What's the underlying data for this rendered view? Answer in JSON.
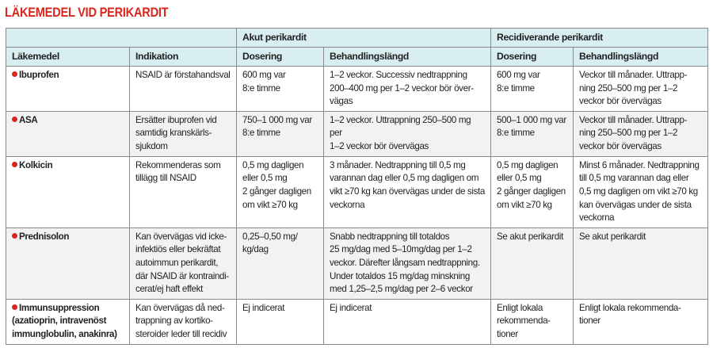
{
  "title": "LÄKEMEDEL VID PERIKARDIT",
  "colors": {
    "title": "#d8261c",
    "header_bg": "#d8eef0",
    "bullet": "#d8261c",
    "alt_row": "#f2f2f2"
  },
  "groups": {
    "acute": "Akut perikardit",
    "recurrent": "Recidiverande perikardit"
  },
  "columns": [
    "Läkemedel",
    "Indikation",
    "Dosering",
    "Behandlingslängd",
    "Dosering",
    "Behandlingslängd"
  ],
  "rows": [
    {
      "drug": "Ibuprofen",
      "indication": "NSAID är förstahandsval",
      "acute_dose": "600 mg var\n8:e timme",
      "acute_duration": "1–2 veckor. Successiv nedtrappning\n200–400 mg per 1–2 veckor bör över-\nvägas",
      "recurrent_dose": "600 mg var\n8:e timme",
      "recurrent_duration": "Veckor till månader. Uttrapp-\nning 250–500 mg per 1–2\nveckor bör övervägas"
    },
    {
      "drug": "ASA",
      "indication": "Ersätter ibuprofen vid\nsamtidig kranskärls-\nsjukdom",
      "acute_dose": "750–1 000 mg var\n8:e timme",
      "acute_duration": "1–2 veckor. Uttrappning 250–500 mg per\n1–2 veckor bör övervägas",
      "recurrent_dose": "500–1 000 mg var\n8:e timme",
      "recurrent_duration": "Veckor till månader. Uttrapp-\nning 250–500 mg per 1–2\nveckor bör övervägas"
    },
    {
      "drug": "Kolkicin",
      "indication": "Rekommenderas som\ntillägg till NSAID",
      "acute_dose": "0,5 mg dagligen\neller 0,5 mg\n2 gånger dagligen\nom vikt ≥70 kg",
      "acute_duration": "3 månader. Nedtrappning till 0,5 mg\nvarannan dag eller 0,5 mg dagligen om\nvikt ≥70 kg kan övervägas under de sista\nveckorna",
      "recurrent_dose": "0,5 mg dagligen\neller 0,5 mg\n2 gånger dagligen\nom vikt ≥70 kg",
      "recurrent_duration": "Minst 6 månader. Nedtrappning\ntill 0,5 mg varannan dag eller\n0,5 mg dagligen om vikt ≥70 kg\nkan övervägas under de sista\nveckorna"
    },
    {
      "drug": "Prednisolon",
      "indication": "Kan övervägas vid icke-\ninfektiös eller bekräftat\nautoimmun perikardit,\ndär NSAID är kontraindi-\ncerat/ej haft effekt",
      "acute_dose": "0,25–0,50 mg/\nkg/dag",
      "acute_duration": "Snabb nedtrappning till totaldos\n25 mg/dag med 5–10mg/dag per 1–2\nveckor. Därefter långsam nedtrappning.\nUnder totaldos 15 mg/dag minskning\nmed 1,25–2,5 mg/dag per 2–6 veckor",
      "recurrent_dose": "Se akut perikardit",
      "recurrent_duration": "Se akut perikardit"
    },
    {
      "drug": "Immunsuppression\n(azatioprin, intravenöst\nimmunglobulin, anakinra)",
      "indication": "Kan övervägas då ned-\ntrappning av kortiko-\nsteroider leder till recidiv",
      "acute_dose": "Ej indicerat",
      "acute_duration": "Ej indicerat",
      "recurrent_dose": "Enligt lokala\nrekommenda-\ntioner",
      "recurrent_duration": "Enligt lokala rekommenda-\ntioner"
    }
  ]
}
